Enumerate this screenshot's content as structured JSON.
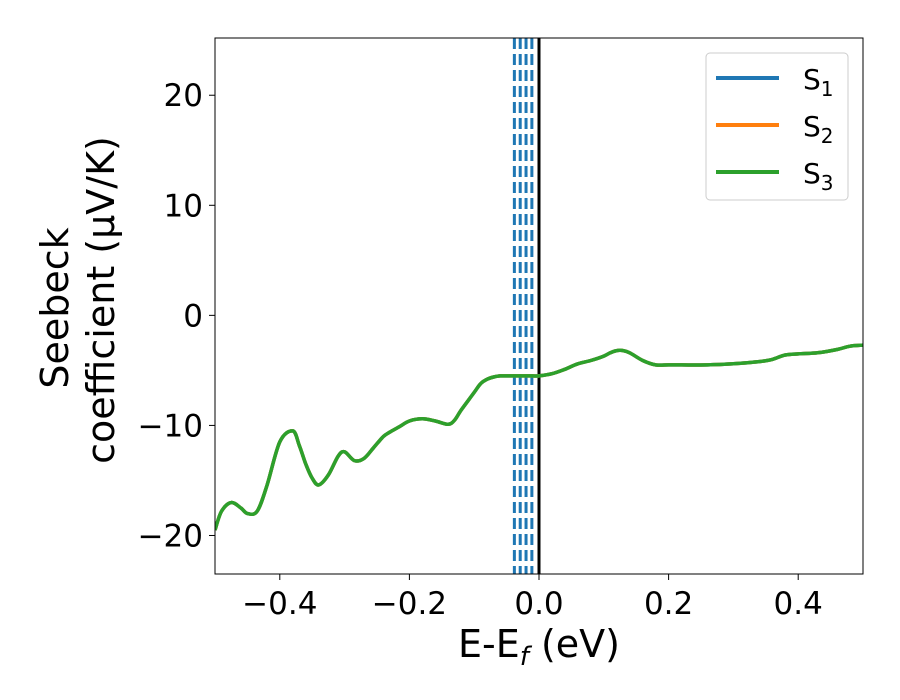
{
  "chart_data": {
    "type": "line",
    "xlabel": "E-E_f (eV)",
    "ylabel_line1": "Seebeck",
    "ylabel_line2": "coefficient  (μV/K)",
    "xlim": [
      -0.5,
      0.5
    ],
    "ylim": [
      -23.5,
      25.2
    ],
    "x_ticks": [
      -0.4,
      -0.2,
      0.0,
      0.2,
      0.4
    ],
    "x_tick_labels": [
      "−0.4",
      "−0.2",
      "0.0",
      "0.2",
      "0.4"
    ],
    "y_ticks": [
      -20,
      -10,
      0,
      10,
      20
    ],
    "y_tick_labels": [
      "−20",
      "−10",
      "0",
      "10",
      "20"
    ],
    "grid": false,
    "legend_position": "top-right",
    "vertical_lines": {
      "solid": {
        "x": 0.0,
        "color": "#000000"
      },
      "dashed": {
        "x": [
          -0.038,
          -0.029,
          -0.02,
          -0.011
        ],
        "color": "#1f77b4"
      }
    },
    "x": [
      -0.5,
      -0.49,
      -0.475,
      -0.46,
      -0.45,
      -0.435,
      -0.42,
      -0.4,
      -0.38,
      -0.37,
      -0.36,
      -0.35,
      -0.34,
      -0.325,
      -0.31,
      -0.3,
      -0.285,
      -0.27,
      -0.255,
      -0.24,
      -0.23,
      -0.215,
      -0.2,
      -0.18,
      -0.16,
      -0.14,
      -0.13,
      -0.12,
      -0.1,
      -0.09,
      -0.08,
      -0.07,
      -0.06,
      -0.05,
      -0.04,
      -0.03,
      -0.02,
      -0.01,
      0.0,
      0.02,
      0.04,
      0.06,
      0.08,
      0.1,
      0.11,
      0.12,
      0.13,
      0.14,
      0.16,
      0.18,
      0.2,
      0.22,
      0.26,
      0.3,
      0.34,
      0.36,
      0.38,
      0.4,
      0.43,
      0.46,
      0.48,
      0.5
    ],
    "series": [
      {
        "name": "S_1",
        "color": "#1f77b4",
        "values": [
          -19.5,
          -17.8,
          -17.0,
          -17.5,
          -18.0,
          -17.8,
          -15.5,
          -11.5,
          -10.5,
          -11.8,
          -13.5,
          -14.8,
          -15.4,
          -14.5,
          -12.8,
          -12.4,
          -13.2,
          -13.0,
          -12.0,
          -11.0,
          -10.6,
          -10.1,
          -9.6,
          -9.4,
          -9.6,
          -9.9,
          -9.5,
          -8.6,
          -7.0,
          -6.2,
          -5.8,
          -5.6,
          -5.5,
          -5.5,
          -5.5,
          -5.5,
          -5.5,
          -5.5,
          -5.5,
          -5.3,
          -4.9,
          -4.4,
          -4.1,
          -3.7,
          -3.4,
          -3.2,
          -3.2,
          -3.4,
          -4.1,
          -4.5,
          -4.5,
          -4.5,
          -4.5,
          -4.4,
          -4.2,
          -4.0,
          -3.6,
          -3.5,
          -3.4,
          -3.1,
          -2.8,
          -2.7
        ]
      },
      {
        "name": "S_2",
        "color": "#ff7f0e",
        "values": [
          -19.5,
          -17.8,
          -17.0,
          -17.5,
          -18.0,
          -17.8,
          -15.5,
          -11.5,
          -10.5,
          -11.8,
          -13.5,
          -14.8,
          -15.4,
          -14.5,
          -12.8,
          -12.4,
          -13.2,
          -13.0,
          -12.0,
          -11.0,
          -10.6,
          -10.1,
          -9.6,
          -9.4,
          -9.6,
          -9.9,
          -9.5,
          -8.6,
          -7.0,
          -6.2,
          -5.8,
          -5.6,
          -5.5,
          -5.5,
          -5.5,
          -5.5,
          -5.5,
          -5.5,
          -5.5,
          -5.3,
          -4.9,
          -4.4,
          -4.1,
          -3.7,
          -3.4,
          -3.2,
          -3.2,
          -3.4,
          -4.1,
          -4.5,
          -4.5,
          -4.5,
          -4.5,
          -4.4,
          -4.2,
          -4.0,
          -3.6,
          -3.5,
          -3.4,
          -3.1,
          -2.8,
          -2.7
        ]
      },
      {
        "name": "S_3",
        "color": "#2ca02c",
        "values": [
          -19.5,
          -17.8,
          -17.0,
          -17.5,
          -18.0,
          -17.8,
          -15.5,
          -11.5,
          -10.5,
          -11.8,
          -13.5,
          -14.8,
          -15.4,
          -14.5,
          -12.8,
          -12.4,
          -13.2,
          -13.0,
          -12.0,
          -11.0,
          -10.6,
          -10.1,
          -9.6,
          -9.4,
          -9.6,
          -9.9,
          -9.5,
          -8.6,
          -7.0,
          -6.2,
          -5.8,
          -5.6,
          -5.5,
          -5.5,
          -5.5,
          -5.5,
          -5.5,
          -5.5,
          -5.5,
          -5.3,
          -4.9,
          -4.4,
          -4.1,
          -3.7,
          -3.4,
          -3.2,
          -3.2,
          -3.4,
          -4.1,
          -4.5,
          -4.5,
          -4.5,
          -4.5,
          -4.4,
          -4.2,
          -4.0,
          -3.6,
          -3.5,
          -3.4,
          -3.1,
          -2.8,
          -2.7
        ]
      }
    ],
    "legend": [
      {
        "base": "S",
        "sub": "1",
        "color": "#1f77b4"
      },
      {
        "base": "S",
        "sub": "2",
        "color": "#ff7f0e"
      },
      {
        "base": "S",
        "sub": "3",
        "color": "#2ca02c"
      }
    ]
  }
}
